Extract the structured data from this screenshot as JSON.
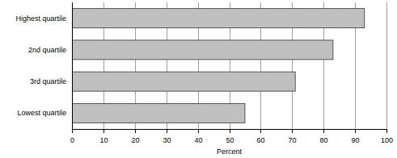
{
  "chart_data": {
    "type": "bar",
    "orientation": "horizontal",
    "categories": [
      "Highest quartile",
      "2nd quartile",
      "3rd quartile",
      "Lowest quartile"
    ],
    "values": [
      93,
      83,
      71,
      55
    ],
    "color": "#c0c0c0",
    "x_label": "Percent",
    "xlim": [
      0,
      100
    ],
    "xticks": [
      0,
      10,
      20,
      30,
      40,
      50,
      60,
      70,
      80,
      90,
      100
    ],
    "grid": true
  }
}
